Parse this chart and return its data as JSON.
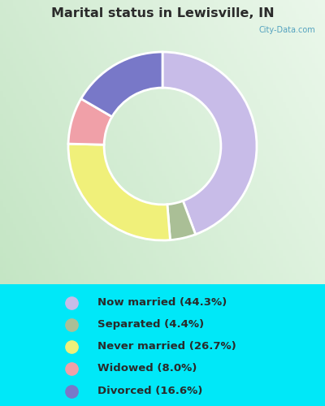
{
  "title": "Marital status in Lewisville, IN",
  "categories": [
    "Now married",
    "Separated",
    "Never married",
    "Widowed",
    "Divorced"
  ],
  "values": [
    44.3,
    4.4,
    26.7,
    8.0,
    16.6
  ],
  "colors": [
    "#c8bce8",
    "#aabf96",
    "#f0f07a",
    "#f0a0a8",
    "#7878c8"
  ],
  "legend_colors": [
    "#c8bce8",
    "#aabf96",
    "#f0f07a",
    "#f0a0a8",
    "#7878c8"
  ],
  "chart_bg": "#dff0df",
  "legend_bg": "#00e8f8",
  "title_color": "#2a2a2a",
  "legend_text_color": "#2a2a2a",
  "watermark": "City-Data.com",
  "figsize": [
    4.0,
    5.0
  ],
  "dpi": 100
}
